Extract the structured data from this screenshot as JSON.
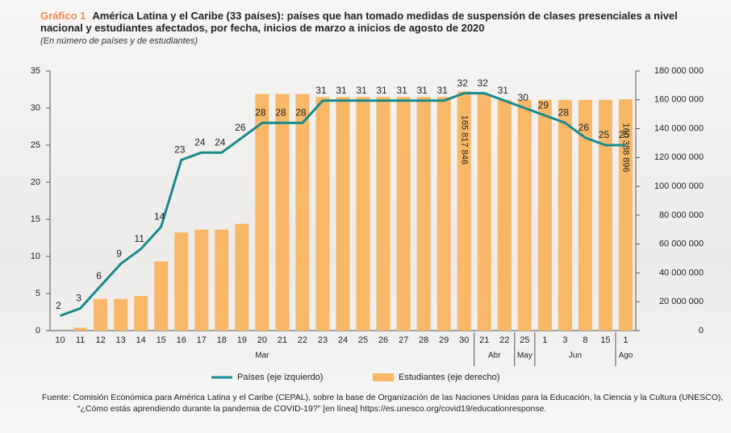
{
  "header": {
    "label": "Gráfico 1",
    "title": "América Latina y el Caribe (33 países): países que han tomado medidas de suspensión de clases presenciales a nivel nacional y estudiantes afectados, por fecha, inicios de marzo a inicios de agosto de 2020",
    "subtitle": "(En número de países y de estudiantes)"
  },
  "chart_data": {
    "type": "bar",
    "categories": [
      "10",
      "11",
      "12",
      "13",
      "14",
      "15",
      "16",
      "17",
      "18",
      "19",
      "20",
      "21",
      "22",
      "23",
      "24",
      "25",
      "26",
      "27",
      "28",
      "29",
      "30",
      "21",
      "22",
      "25",
      "1",
      "3",
      "8",
      "15",
      "1"
    ],
    "x_groups": [
      {
        "label": "Mar",
        "span": 21
      },
      {
        "label": "Abr",
        "span": 2
      },
      {
        "label": "May",
        "span": 1
      },
      {
        "label": "Jun",
        "span": 4
      },
      {
        "label": "Ago",
        "span": 1
      }
    ],
    "series": [
      {
        "name": "Estudiantes (eje derecho)",
        "type": "bar",
        "axis": "y2",
        "color": "#f8b868",
        "values": [
          0,
          2000000,
          22000000,
          22000000,
          24000000,
          48000000,
          68000000,
          70000000,
          70000000,
          74000000,
          164000000,
          164000000,
          164000000,
          162000000,
          162000000,
          162000000,
          162000000,
          162000000,
          162000000,
          162000000,
          165817846,
          164000000,
          160000000,
          160000000,
          160000000,
          160000000,
          160000000,
          160000000,
          160388896
        ],
        "value_labels": [
          null,
          null,
          null,
          null,
          null,
          null,
          null,
          null,
          null,
          null,
          null,
          null,
          null,
          null,
          null,
          null,
          null,
          null,
          null,
          null,
          "165 817 846",
          null,
          null,
          null,
          null,
          null,
          null,
          null,
          "160 388 896"
        ]
      },
      {
        "name": "Países (eje izquierdo)",
        "type": "line",
        "color": "#1a8a8c",
        "values": [
          2,
          3,
          6,
          9,
          11,
          14,
          23,
          24,
          24,
          26,
          28,
          28,
          28,
          31,
          31,
          31,
          31,
          31,
          31,
          31,
          32,
          32,
          31,
          30,
          29,
          28,
          26,
          25,
          25
        ]
      }
    ],
    "ylim": [
      0,
      35
    ],
    "yticks": [
      0,
      5,
      10,
      15,
      20,
      25,
      30,
      35
    ],
    "y2lim": [
      0,
      180000000
    ],
    "y2ticks": [
      0,
      {
        "value": 20000000,
        "label": "20 000 000"
      },
      {
        "value": 40000000,
        "label": "40 000 000"
      },
      {
        "value": 60000000,
        "label": "60 000 000"
      },
      {
        "value": 80000000,
        "label": "80 000 000"
      },
      {
        "value": 100000000,
        "label": "100 000 000"
      },
      {
        "value": 120000000,
        "label": "120 000 000"
      },
      {
        "value": 140000000,
        "label": "140 000 000"
      },
      {
        "value": 160000000,
        "label": "160 000 000"
      },
      {
        "value": 180000000,
        "label": "180 000 000"
      }
    ],
    "grid": false
  },
  "source": "Fuente: Comisión Económica para América Latina y el Caribe (CEPAL), sobre la base de Organización de las Naciones Unidas para la Educación, la Ciencia y la Cultura (UNESCO), “¿Cómo estás aprendiendo durante la pandemia de COVID-19?” [en línea] https://es.unesco.org/covid19/educationresponse."
}
